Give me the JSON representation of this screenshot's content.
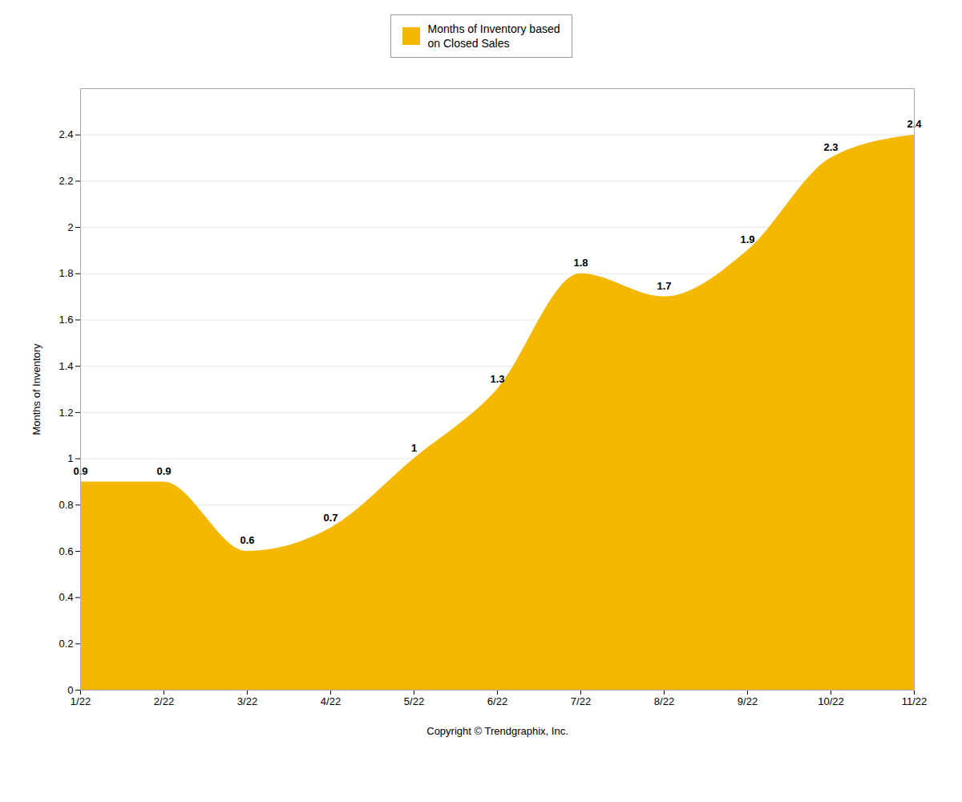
{
  "chart_data": {
    "type": "area",
    "categories": [
      "1/22",
      "2/22",
      "3/22",
      "4/22",
      "5/22",
      "6/22",
      "7/22",
      "8/22",
      "9/22",
      "10/22",
      "11/22"
    ],
    "series": [
      {
        "name": "Months of Inventory based\non Closed Sales",
        "color": "#F5B800",
        "values": [
          0.9,
          0.9,
          0.6,
          0.7,
          1,
          1.3,
          1.8,
          1.7,
          1.9,
          2.3,
          2.4
        ]
      }
    ],
    "xlabel": "Copyright © Trendgraphix, Inc.",
    "ylabel": "Months of Inventory",
    "ylim": [
      0,
      2.6
    ],
    "yticks": [
      0,
      0.2,
      0.4,
      0.6,
      0.8,
      1,
      1.2,
      1.4,
      1.6,
      1.8,
      2,
      2.2,
      2.4
    ],
    "grid": true,
    "data_labels": true,
    "legend": "top"
  }
}
